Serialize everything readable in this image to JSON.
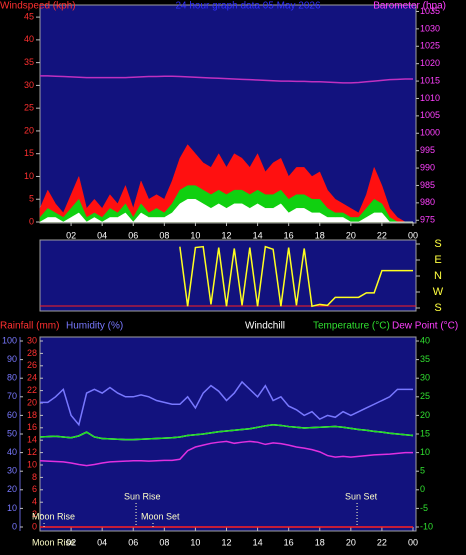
{
  "chart_data": [
    {
      "type": "area",
      "title": "24 hour graph data  05 May 2026",
      "y_label": "Windspeed (kph)",
      "y2_label": "Barometer (hpa)",
      "x": [
        0,
        0.5,
        1,
        1.5,
        2,
        2.5,
        3,
        3.5,
        4,
        4.5,
        5,
        5.5,
        6,
        6.5,
        7,
        7.5,
        8,
        8.5,
        9,
        9.5,
        10,
        10.5,
        11,
        11.5,
        12,
        12.5,
        13,
        13.5,
        14,
        14.5,
        15,
        15.5,
        16,
        16.5,
        17,
        17.5,
        18,
        18.5,
        19,
        19.5,
        20,
        20.5,
        21,
        21.5,
        22,
        22.5,
        23,
        23.5,
        24
      ],
      "xlim": [
        0,
        24
      ],
      "xticks": [
        {
          "value": 2,
          "label": "02"
        },
        {
          "value": 4,
          "label": "04"
        },
        {
          "value": 6,
          "label": "06"
        },
        {
          "value": 8,
          "label": "08"
        },
        10,
        12,
        14,
        16,
        18,
        20,
        22,
        {
          "value": 24,
          "label": "00"
        }
      ],
      "ylim": [
        0,
        47
      ],
      "yticks": [
        0,
        5,
        10,
        15,
        20,
        25,
        30,
        35,
        40,
        45
      ],
      "y2lim": [
        974.5,
        1036
      ],
      "y2ticks": [
        975,
        980,
        985,
        990,
        995,
        1000,
        1005,
        1010,
        1015,
        1020,
        1025,
        1030,
        1035
      ],
      "series": [
        {
          "color": "#ff1010",
          "values": [
            3,
            7,
            4,
            2,
            6,
            10,
            3,
            5,
            3,
            6,
            4,
            8,
            3,
            9,
            5,
            6,
            5,
            9,
            14,
            17,
            15,
            13,
            12,
            15,
            12,
            15,
            14,
            12,
            15,
            11,
            13,
            14,
            10,
            12,
            12,
            10,
            11,
            7,
            5,
            4,
            3,
            2,
            6,
            12,
            8,
            3,
            1,
            0,
            0
          ]
        },
        {
          "color": "#10d010",
          "values": [
            1,
            3,
            2,
            1,
            3,
            5,
            1,
            2,
            1,
            3,
            2,
            4,
            1,
            4,
            2,
            3,
            2,
            4,
            7,
            8,
            8,
            7,
            6,
            7,
            6,
            7,
            7,
            6,
            7,
            6,
            6,
            7,
            5,
            6,
            6,
            5,
            5,
            3,
            2,
            2,
            1,
            1,
            3,
            5,
            4,
            1,
            0,
            0,
            0
          ]
        },
        {
          "color": "#ffffff",
          "values": [
            0,
            1,
            1,
            0,
            1,
            2,
            0,
            1,
            0,
            1,
            1,
            2,
            0,
            2,
            1,
            1,
            1,
            2,
            4,
            5,
            5,
            4,
            3,
            4,
            3,
            4,
            4,
            3,
            4,
            3,
            3,
            4,
            2,
            3,
            3,
            2,
            2,
            1,
            1,
            1,
            0,
            0,
            1,
            2,
            2,
            0,
            0,
            0,
            0
          ]
        },
        {
          "color": "#c030c0",
          "type": "line",
          "axis": "y2",
          "values": [
            1016.5,
            1016.5,
            1016.4,
            1016.3,
            1016.2,
            1016.1,
            1016.0,
            1016.0,
            1016.0,
            1016.0,
            1016.0,
            1016.0,
            1016.1,
            1016.2,
            1016.3,
            1016.3,
            1016.4,
            1016.4,
            1016.3,
            1016.2,
            1016.1,
            1016.0,
            1015.9,
            1015.8,
            1015.7,
            1015.6,
            1015.5,
            1015.4,
            1015.3,
            1015.2,
            1015.1,
            1015.0,
            1015.0,
            1014.9,
            1014.9,
            1014.8,
            1014.8,
            1014.7,
            1014.6,
            1014.5,
            1014.5,
            1014.6,
            1014.8,
            1015.0,
            1015.2,
            1015.4,
            1015.5,
            1015.6,
            1015.6
          ]
        }
      ]
    },
    {
      "type": "line",
      "x": [
        0,
        0.5,
        1,
        1.5,
        2,
        2.5,
        3,
        3.5,
        4,
        4.5,
        5,
        5.5,
        6,
        6.5,
        7,
        7.5,
        8,
        8.5,
        9,
        9.5,
        10,
        10.5,
        11,
        11.5,
        12,
        12.5,
        13,
        13.5,
        14,
        14.5,
        15,
        15.5,
        16,
        16.5,
        17,
        17.5,
        18,
        18.5,
        19,
        19.5,
        20,
        20.5,
        21,
        21.5,
        22,
        22.5,
        23,
        23.5,
        24
      ],
      "xlim": [
        0,
        24
      ],
      "ylim": [
        -180,
        180
      ],
      "yticks": [
        {
          "value": 180,
          "label": "S"
        },
        {
          "value": 90,
          "label": "E"
        },
        {
          "value": 0,
          "label": "N"
        },
        {
          "value": -90,
          "label": "W"
        },
        {
          "value": -180,
          "label": "S"
        }
      ],
      "series": [
        {
          "color": "#ffff20",
          "values": [
            null,
            null,
            null,
            null,
            null,
            null,
            null,
            null,
            null,
            null,
            null,
            null,
            null,
            null,
            null,
            null,
            null,
            null,
            165,
            -170,
            160,
            165,
            -160,
            160,
            -170,
            155,
            -165,
            160,
            -170,
            165,
            150,
            -170,
            160,
            -165,
            155,
            -170,
            -160,
            -165,
            -120,
            -120,
            -120,
            -120,
            -95,
            -95,
            30,
            30,
            30,
            30,
            30
          ]
        }
      ]
    },
    {
      "type": "line",
      "x": [
        0,
        0.5,
        1,
        1.5,
        2,
        2.5,
        3,
        3.5,
        4,
        4.5,
        5,
        5.5,
        6,
        6.5,
        7,
        7.5,
        8,
        8.5,
        9,
        9.5,
        10,
        10.5,
        11,
        11.5,
        12,
        12.5,
        13,
        13.5,
        14,
        14.5,
        15,
        15.5,
        16,
        16.5,
        17,
        17.5,
        18,
        18.5,
        19,
        19.5,
        20,
        20.5,
        21,
        21.5,
        22,
        22.5,
        23,
        23.5,
        24
      ],
      "xlim": [
        0,
        24
      ],
      "xticks": [
        {
          "value": 2,
          "label": "02"
        },
        {
          "value": 4,
          "label": "04"
        },
        {
          "value": 6,
          "label": "06"
        },
        {
          "value": 8,
          "label": "08"
        },
        10,
        12,
        14,
        16,
        18,
        20,
        22,
        {
          "value": 24,
          "label": "00"
        }
      ],
      "x_note": "Moon Rise",
      "ylim": [
        0,
        100
      ],
      "yticks": [
        0,
        10,
        20,
        30,
        40,
        50,
        60,
        70,
        80,
        90,
        100
      ],
      "y3lim": [
        0,
        30
      ],
      "y3ticks": [
        0,
        2,
        4,
        6,
        8,
        10,
        12,
        14,
        16,
        18,
        20,
        22,
        24,
        26,
        28,
        30
      ],
      "y2lim": [
        -10,
        40
      ],
      "y2ticks": [
        -10,
        -5,
        0,
        5,
        10,
        15,
        20,
        25,
        30,
        35,
        40
      ],
      "series": [
        {
          "name": "Rainfall (mm)",
          "color": "#ff2020",
          "axis": "y3",
          "values": [
            0,
            0,
            0,
            0,
            0,
            0,
            0,
            0,
            0,
            0,
            0,
            0,
            0,
            0,
            0,
            0,
            0,
            0,
            0,
            0,
            0,
            0,
            0,
            0,
            0,
            0,
            0,
            0,
            0,
            0,
            0,
            0,
            0,
            0,
            0,
            0,
            0,
            0,
            0,
            0,
            0,
            0,
            0,
            0,
            0,
            0,
            0,
            0,
            0
          ]
        },
        {
          "name": "Humidity (%)",
          "color": "#7878ff",
          "values": [
            67,
            67,
            70,
            74,
            60,
            55,
            72,
            74,
            72,
            75,
            72,
            70,
            70,
            71,
            70,
            68,
            67,
            66,
            66,
            70,
            64,
            72,
            76,
            73,
            68,
            72,
            78,
            74,
            70,
            76,
            68,
            70,
            65,
            63,
            60,
            62,
            58,
            60,
            59,
            62,
            60,
            62,
            64,
            66,
            68,
            70,
            74,
            74,
            74
          ]
        },
        {
          "name": "Windchill",
          "color": "#ffffff",
          "axis": "y2",
          "values": [
            14.2,
            14.3,
            14.4,
            14.2,
            14.0,
            14.5,
            15.5,
            14.2,
            13.8,
            13.7,
            13.6,
            13.5,
            13.5,
            13.6,
            13.7,
            13.8,
            13.9,
            14.0,
            14.2,
            14.6,
            14.8,
            15.0,
            15.3,
            15.6,
            15.8,
            16.0,
            16.2,
            16.4,
            16.8,
            17.2,
            17.5,
            17.3,
            17.0,
            16.8,
            16.6,
            16.7,
            16.8,
            16.9,
            17.0,
            16.8,
            16.5,
            16.2,
            16.0,
            15.7,
            15.5,
            15.2,
            15.0,
            14.8,
            14.6
          ]
        },
        {
          "name": "Temperature (°C)",
          "color": "#20e020",
          "axis": "y2",
          "values": [
            14.2,
            14.3,
            14.4,
            14.2,
            14.0,
            14.5,
            15.5,
            14.2,
            13.8,
            13.7,
            13.6,
            13.5,
            13.5,
            13.6,
            13.7,
            13.8,
            13.9,
            14.0,
            14.2,
            14.6,
            14.8,
            15.0,
            15.3,
            15.6,
            15.8,
            16.0,
            16.2,
            16.4,
            16.8,
            17.2,
            17.5,
            17.3,
            17.0,
            16.8,
            16.6,
            16.7,
            16.8,
            16.9,
            17.0,
            16.8,
            16.5,
            16.2,
            16.0,
            15.7,
            15.5,
            15.2,
            15.0,
            14.8,
            14.6
          ]
        },
        {
          "name": "Dew Point (°C)",
          "color": "#e030e0",
          "axis": "y2",
          "values": [
            7.8,
            7.7,
            7.6,
            7.5,
            7.2,
            6.8,
            6.5,
            6.8,
            7.2,
            7.5,
            7.6,
            7.7,
            7.8,
            7.8,
            7.7,
            7.8,
            7.9,
            7.9,
            8.2,
            10.5,
            11.5,
            12.0,
            12.5,
            12.8,
            13.0,
            12.5,
            12.8,
            13.0,
            12.8,
            12.2,
            12.6,
            12.4,
            12.0,
            11.5,
            11.2,
            10.8,
            10.2,
            9.2,
            8.8,
            9.0,
            8.8,
            9.0,
            9.2,
            9.4,
            9.5,
            9.6,
            9.8,
            10.0,
            10.0
          ]
        }
      ],
      "annotations": [
        {
          "label": "Moon Rise",
          "x": 0.26
        },
        {
          "label": "Sun Rise",
          "x": 6.18
        },
        {
          "label": "Moon Set",
          "x": 7.27
        },
        {
          "label": "Sun Set",
          "x": 20.4
        }
      ]
    }
  ]
}
